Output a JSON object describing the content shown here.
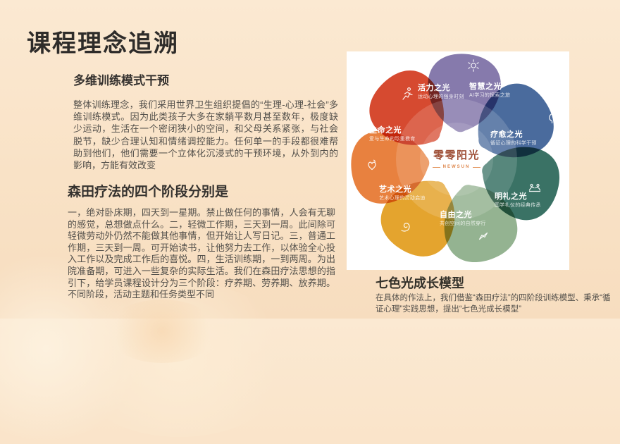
{
  "slide": {
    "title": "课程理念追溯",
    "sections": [
      {
        "heading": "多维训练模式干预",
        "body": "整体训练理念，我们采用世界卫生组织提倡的“生理-心理-社会”多维训练模式。因为此类孩子大多在家躺平数月甚至数年，极度缺少运动，生活在一个密闭狭小的空间，和父母关系紧张，与社会脱节，缺少合理认知和情绪调控能力。任何单一的手段都很难帮助到他们，他们需要一个立体化沉浸式的干预环境，从外到内的影响，方能有效改变"
      },
      {
        "heading": "森田疗法的四个阶段分别是",
        "body": "一，绝对卧床期，四天到一星期。禁止做任何的事情，人会有无聊的感觉，总想做点什么。二，轻微工作期，三天到一周。此间除可轻微劳动外仍然不能做其他事情，但开始让人写日记。三，普通工作期，三天到一周。可开始读书，让他努力去工作，以体验全心投入工作以及完成工作后的喜悦。四，生活训练期，一到两周。为出院准备期，可进入一些复杂的实际生活。我们在森田疗法思想的指引下，给学员课程设计分为三个阶段：疗养期、劳养期、放养期。不同阶段，活动主题和任务类型不同"
      }
    ]
  },
  "diagram": {
    "brand": {
      "name_cn": "零零阳光",
      "name_en": "NEWSUN",
      "color": "#a0523a",
      "accent": "#dd8448"
    },
    "petals": [
      {
        "id": "wisdom",
        "title": "智慧之光",
        "subtitle": "AI学习的探索之旅",
        "color": "#867aac",
        "icon": "gear-flower-icon"
      },
      {
        "id": "healing",
        "title": "疗愈之光",
        "subtitle": "循证心理的科学干预",
        "color": "#4a6b9d",
        "icon": "mind-gears-icon"
      },
      {
        "id": "etiquette",
        "title": "明礼之光",
        "subtitle": "国学礼仪的经典传承",
        "color": "#3a7265",
        "icon": "bowing-people-icon"
      },
      {
        "id": "freedom",
        "title": "自由之光",
        "subtitle": "共创空间的自然穿行",
        "color": "#94b391",
        "icon": "pinwheel-icon"
      },
      {
        "id": "art",
        "title": "艺术之光",
        "subtitle": "艺术心理的灵动启迪",
        "color": "#e4a42e",
        "icon": "spiral-brush-icon"
      },
      {
        "id": "life",
        "title": "生命之光",
        "subtitle": "爱与生命的珍重教育",
        "color": "#e8813f",
        "icon": "heart-leaf-icon"
      },
      {
        "id": "vitality",
        "title": "活力之光",
        "subtitle": "运动心理的强身时刻",
        "color": "#d64a30",
        "icon": "runner-icon"
      }
    ],
    "caption": {
      "heading": "七色光成长模型",
      "body": "在具体的作法上，我们借鉴“森田疗法”的四阶段训练模型、秉承“循证心理”实践思想，提出“七色光成长模型”"
    }
  }
}
